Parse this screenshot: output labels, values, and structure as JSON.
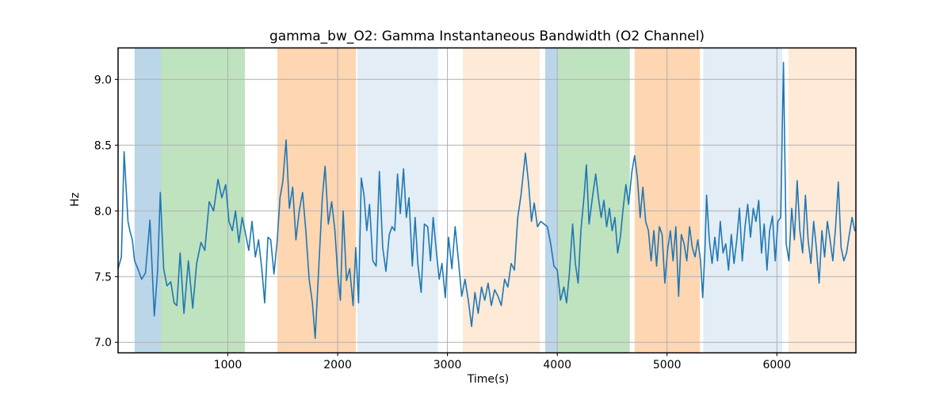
{
  "title": "gamma_bw_O2: Gamma Instantaneous Bandwidth (O2 Channel)",
  "axes": {
    "xlabel": "Time(s)",
    "ylabel": "Hz",
    "xlim": [
      0,
      6720
    ],
    "ylim": [
      6.92,
      9.24
    ],
    "xticks": [
      1000,
      2000,
      3000,
      4000,
      5000,
      6000
    ],
    "xtick_labels": [
      "1000",
      "2000",
      "3000",
      "4000",
      "5000",
      "6000"
    ],
    "yticks": [
      7.0,
      7.5,
      8.0,
      8.5,
      9.0
    ],
    "ytick_labels": [
      "7.0",
      "7.5",
      "8.0",
      "8.5",
      "9.0"
    ],
    "grid": true
  },
  "colors": {
    "line": "#1f77b4",
    "grid": "#b0b0b0",
    "frame": "#000000",
    "bands": {
      "blue": "rgba(31,119,180,0.30)",
      "green": "rgba(44,160,44,0.30)",
      "orange": "rgba(255,127,14,0.32)",
      "blue_light": "rgba(31,119,180,0.13)",
      "orange_light": "rgba(255,127,14,0.16)"
    }
  },
  "bands": [
    {
      "from": 150,
      "to": 390,
      "type": "blue"
    },
    {
      "from": 390,
      "to": 1155,
      "type": "green"
    },
    {
      "from": 1450,
      "to": 2165,
      "type": "orange"
    },
    {
      "from": 2180,
      "to": 2915,
      "type": "blue_light"
    },
    {
      "from": 3140,
      "to": 3840,
      "type": "orange_light"
    },
    {
      "from": 3890,
      "to": 4010,
      "type": "blue"
    },
    {
      "from": 4010,
      "to": 4660,
      "type": "green"
    },
    {
      "from": 4705,
      "to": 5300,
      "type": "orange"
    },
    {
      "from": 5330,
      "to": 6050,
      "type": "blue_light"
    },
    {
      "from": 6105,
      "to": 6720,
      "type": "orange_light"
    }
  ],
  "chart_data": {
    "type": "line",
    "title": "gamma_bw_O2: Gamma Instantaneous Bandwidth (O2 Channel)",
    "xlabel": "Time(s)",
    "ylabel": "Hz",
    "xlim": [
      0,
      6720
    ],
    "ylim": [
      6.92,
      9.24
    ],
    "grid": true,
    "legend": "none",
    "series": [
      {
        "name": "gamma_bw_O2",
        "x": [
          0,
          30,
          55,
          90,
          110,
          130,
          150,
          180,
          215,
          250,
          290,
          330,
          360,
          385,
          415,
          445,
          480,
          510,
          535,
          565,
          600,
          640,
          680,
          715,
          755,
          790,
          830,
          870,
          910,
          945,
          980,
          1010,
          1040,
          1070,
          1100,
          1130,
          1160,
          1190,
          1220,
          1250,
          1280,
          1310,
          1335,
          1365,
          1390,
          1420,
          1450,
          1475,
          1500,
          1530,
          1560,
          1590,
          1620,
          1650,
          1680,
          1710,
          1740,
          1770,
          1795,
          1830,
          1860,
          1885,
          1915,
          1945,
          1975,
          2000,
          2025,
          2050,
          2080,
          2110,
          2140,
          2165,
          2190,
          2215,
          2240,
          2265,
          2290,
          2320,
          2350,
          2380,
          2410,
          2440,
          2470,
          2495,
          2520,
          2545,
          2570,
          2600,
          2625,
          2650,
          2680,
          2705,
          2730,
          2760,
          2790,
          2820,
          2845,
          2870,
          2900,
          2925,
          2950,
          2980,
          3010,
          3040,
          3070,
          3100,
          3130,
          3160,
          3190,
          3220,
          3250,
          3280,
          3310,
          3340,
          3370,
          3400,
          3430,
          3460,
          3490,
          3520,
          3550,
          3580,
          3610,
          3640,
          3670,
          3710,
          3740,
          3765,
          3790,
          3820,
          3850,
          3880,
          3910,
          3940,
          3970,
          4000,
          4030,
          4060,
          4085,
          4110,
          4140,
          4165,
          4190,
          4215,
          4245,
          4265,
          4290,
          4320,
          4350,
          4375,
          4400,
          4425,
          4450,
          4475,
          4500,
          4525,
          4550,
          4575,
          4600,
          4625,
          4650,
          4680,
          4705,
          4730,
          4755,
          4780,
          4805,
          4830,
          4855,
          4880,
          4905,
          4930,
          4955,
          4980,
          5005,
          5030,
          5055,
          5080,
          5105,
          5130,
          5155,
          5180,
          5205,
          5230,
          5255,
          5280,
          5305,
          5325,
          5345,
          5360,
          5385,
          5410,
          5435,
          5460,
          5485,
          5510,
          5535,
          5560,
          5585,
          5610,
          5635,
          5660,
          5685,
          5710,
          5735,
          5760,
          5785,
          5810,
          5835,
          5860,
          5885,
          5910,
          5935,
          5960,
          5985,
          6010,
          6035,
          6060,
          6085,
          6110,
          6135,
          6160,
          6185,
          6210,
          6235,
          6260,
          6285,
          6310,
          6335,
          6360,
          6385,
          6410,
          6435,
          6460,
          6485,
          6510,
          6535,
          6560,
          6585,
          6610,
          6635,
          6660,
          6685,
          6710
        ],
        "y": [
          7.56,
          7.65,
          8.45,
          7.92,
          7.84,
          7.78,
          7.62,
          7.56,
          7.48,
          7.53,
          7.93,
          7.2,
          7.55,
          8.14,
          7.56,
          7.43,
          7.46,
          7.3,
          7.28,
          7.68,
          7.22,
          7.62,
          7.26,
          7.6,
          7.76,
          7.7,
          8.07,
          8.0,
          8.24,
          8.1,
          8.2,
          7.92,
          7.85,
          8.0,
          7.76,
          7.95,
          7.83,
          7.7,
          7.92,
          7.65,
          7.78,
          7.55,
          7.3,
          7.8,
          7.78,
          7.52,
          7.78,
          8.1,
          8.22,
          8.54,
          8.02,
          8.18,
          7.78,
          8.0,
          8.14,
          7.85,
          7.48,
          7.3,
          7.03,
          7.6,
          8.1,
          8.34,
          7.9,
          8.07,
          7.85,
          7.52,
          7.32,
          8.0,
          7.47,
          7.56,
          7.28,
          7.72,
          7.3,
          8.25,
          8.12,
          7.85,
          8.05,
          7.62,
          7.58,
          8.3,
          7.72,
          7.54,
          7.82,
          7.88,
          7.85,
          8.28,
          7.98,
          8.32,
          7.95,
          8.1,
          7.58,
          7.95,
          7.6,
          7.38,
          7.9,
          7.88,
          7.62,
          7.95,
          7.68,
          7.48,
          7.6,
          7.34,
          7.8,
          7.56,
          7.88,
          7.62,
          7.35,
          7.48,
          7.32,
          7.12,
          7.38,
          7.22,
          7.42,
          7.32,
          7.45,
          7.28,
          7.4,
          7.35,
          7.28,
          7.48,
          7.42,
          7.6,
          7.55,
          7.95,
          8.12,
          8.44,
          8.2,
          7.92,
          8.06,
          7.88,
          7.92,
          7.9,
          7.88,
          7.75,
          7.58,
          7.55,
          7.32,
          7.42,
          7.3,
          7.52,
          7.9,
          7.6,
          7.45,
          7.85,
          8.12,
          8.35,
          7.9,
          8.1,
          8.28,
          8.1,
          7.95,
          8.08,
          7.88,
          8.02,
          7.85,
          7.95,
          7.68,
          7.8,
          8.02,
          8.2,
          8.05,
          8.3,
          8.42,
          8.25,
          7.95,
          8.18,
          7.92,
          7.85,
          7.62,
          7.85,
          7.58,
          7.88,
          7.82,
          7.45,
          7.7,
          7.85,
          7.62,
          7.88,
          7.35,
          7.82,
          7.75,
          7.62,
          7.88,
          7.72,
          7.65,
          7.78,
          7.62,
          7.34,
          7.7,
          8.12,
          7.78,
          7.6,
          7.8,
          7.62,
          7.92,
          7.68,
          7.75,
          7.55,
          7.82,
          7.6,
          7.78,
          8.02,
          7.62,
          7.88,
          8.05,
          7.8,
          8.02,
          7.92,
          8.08,
          7.68,
          7.9,
          7.55,
          7.85,
          7.96,
          7.62,
          7.92,
          7.95,
          9.13,
          7.75,
          7.62,
          8.02,
          7.78,
          8.23,
          7.85,
          7.68,
          8.12,
          7.78,
          7.6,
          7.92,
          7.72,
          7.45,
          7.85,
          7.65,
          7.92,
          7.78,
          7.62,
          7.88,
          8.22,
          7.72,
          7.62,
          7.68,
          7.82,
          7.95,
          7.85
        ]
      }
    ]
  }
}
